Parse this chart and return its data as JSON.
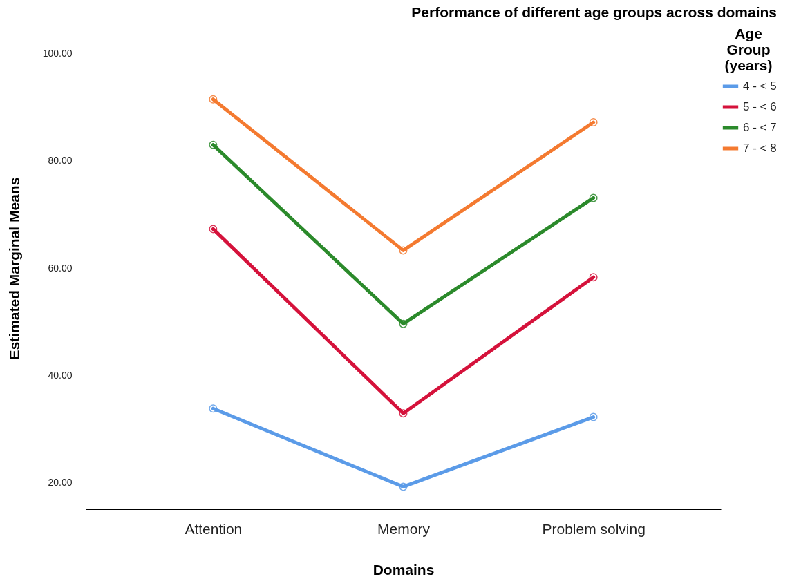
{
  "chart_data": {
    "type": "line",
    "title": "Performance of different age groups across domains",
    "xlabel": "Domains",
    "ylabel": "Estimated Marginal Means",
    "legend_title": "Age Group (years)",
    "categories": [
      "Attention",
      "Memory",
      "Problem solving"
    ],
    "series": [
      {
        "name": "4 - < 5",
        "color": "#5b9be8",
        "values": [
          33.8,
          19.2,
          32.2
        ]
      },
      {
        "name": "5 - < 6",
        "color": "#d5123b",
        "values": [
          67.3,
          32.9,
          58.3
        ]
      },
      {
        "name": "6 - < 7",
        "color": "#2b8a2b",
        "values": [
          83.0,
          49.6,
          73.1
        ]
      },
      {
        "name": "7 - < 8",
        "color": "#f47a30",
        "values": [
          91.5,
          63.3,
          87.2
        ]
      }
    ],
    "ylim": [
      15,
      105
    ],
    "yticks": [
      {
        "value": 20,
        "label": "20.00"
      },
      {
        "value": 40,
        "label": "40.00"
      },
      {
        "value": 60,
        "label": "60.00"
      },
      {
        "value": 80,
        "label": "80.00"
      },
      {
        "value": 100,
        "label": "100.00"
      }
    ],
    "grid": false,
    "legend": "top right",
    "marker": "circle",
    "line_style": "solid"
  }
}
